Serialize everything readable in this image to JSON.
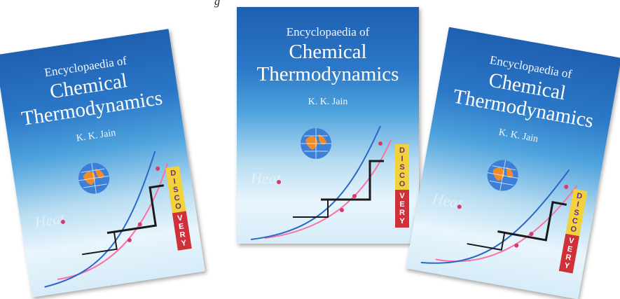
{
  "top_fragment": "g",
  "books": [
    {
      "series": "Encyclopaedia of",
      "title_line1": "Chemical",
      "title_line2": "Thermodynamics",
      "author": "K. K. Jain",
      "faint_word": "Heat",
      "badge_top": [
        "D",
        "I",
        "S",
        "C",
        "O"
      ],
      "badge_bottom": [
        "V",
        "E",
        "R",
        "Y"
      ]
    },
    {
      "series": "Encyclopaedia of",
      "title_line1": "Chemical",
      "title_line2": "Thermodynamics",
      "author": "K. K. Jain",
      "faint_word": "Heat",
      "badge_top": [
        "D",
        "I",
        "S",
        "C",
        "O"
      ],
      "badge_bottom": [
        "V",
        "E",
        "R",
        "Y"
      ]
    },
    {
      "series": "Encyclopaedia of",
      "title_line1": "Chemical",
      "title_line2": "Thermodynamics",
      "author": "K. K. Jain",
      "faint_word": "Heat",
      "badge_top": [
        "D",
        "I",
        "S",
        "C",
        "O"
      ],
      "badge_bottom": [
        "V",
        "E",
        "R",
        "Y"
      ]
    }
  ],
  "colors": {
    "cover_blue": "#1f5fb0",
    "badge_yellow": "#f1d23b",
    "badge_red": "#d0303a"
  }
}
